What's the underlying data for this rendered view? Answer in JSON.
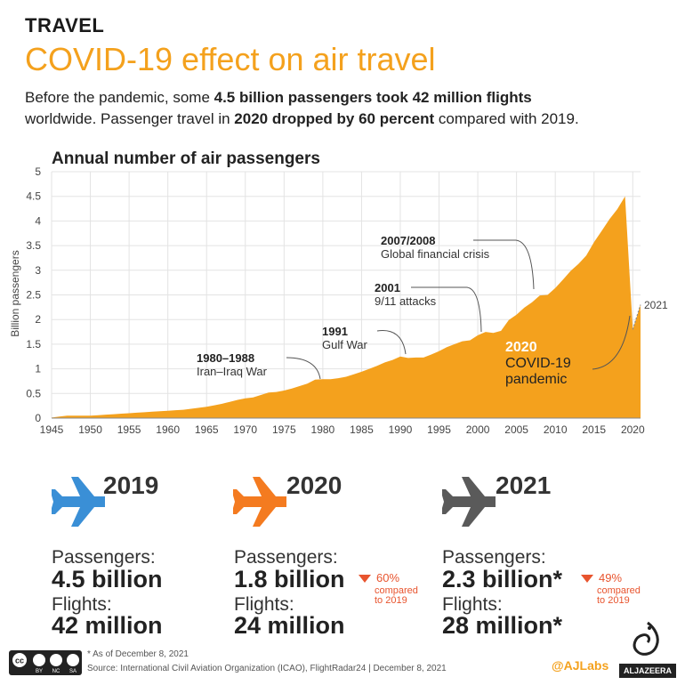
{
  "header": {
    "category": "TRAVEL",
    "headline": "COVID-19 effect on air travel",
    "intro": {
      "l1_a": "Before the pandemic, some ",
      "l1_b": "4.5 billion passengers took 42 million flights",
      "l2_a": "worldwide. Passenger travel in ",
      "l2_b": "2020 dropped by 60 percent",
      "l2_c": " compared with 2019."
    }
  },
  "chart_data": {
    "type": "area",
    "title": "Annual number of air passengers",
    "ylabel": "Billion passengers",
    "xlabel": "",
    "xlim": [
      1945,
      2021
    ],
    "ylim": [
      0,
      5
    ],
    "yticks": [
      "0",
      "0.5",
      "1",
      "1.5",
      "2",
      "2.5",
      "3",
      "3.5",
      "4",
      "4.5",
      "5"
    ],
    "xticks": [
      "1945",
      "1950",
      "1955",
      "1960",
      "1965",
      "1970",
      "1975",
      "1980",
      "1985",
      "1990",
      "1995",
      "2000",
      "2005",
      "2010",
      "2015",
      "2020"
    ],
    "color": "#f4a11d",
    "x": [
      1945,
      1946,
      1947,
      1948,
      1949,
      1950,
      1951,
      1952,
      1953,
      1954,
      1955,
      1956,
      1957,
      1958,
      1959,
      1960,
      1961,
      1962,
      1963,
      1964,
      1965,
      1966,
      1967,
      1968,
      1969,
      1970,
      1971,
      1972,
      1973,
      1974,
      1975,
      1976,
      1977,
      1978,
      1979,
      1980,
      1981,
      1982,
      1983,
      1984,
      1985,
      1986,
      1987,
      1988,
      1989,
      1990,
      1991,
      1992,
      1993,
      1994,
      1995,
      1996,
      1997,
      1998,
      1999,
      2000,
      2001,
      2002,
      2003,
      2004,
      2005,
      2006,
      2007,
      2008,
      2009,
      2010,
      2011,
      2012,
      2013,
      2014,
      2015,
      2016,
      2017,
      2018,
      2019,
      2020,
      2021
    ],
    "values": [
      0.01,
      0.03,
      0.05,
      0.05,
      0.05,
      0.05,
      0.06,
      0.07,
      0.08,
      0.09,
      0.1,
      0.11,
      0.12,
      0.13,
      0.14,
      0.15,
      0.16,
      0.17,
      0.19,
      0.21,
      0.23,
      0.26,
      0.29,
      0.33,
      0.37,
      0.4,
      0.42,
      0.47,
      0.52,
      0.53,
      0.56,
      0.6,
      0.65,
      0.7,
      0.78,
      0.79,
      0.79,
      0.81,
      0.84,
      0.89,
      0.94,
      1.0,
      1.06,
      1.13,
      1.18,
      1.25,
      1.22,
      1.23,
      1.23,
      1.29,
      1.36,
      1.44,
      1.5,
      1.56,
      1.58,
      1.68,
      1.75,
      1.73,
      1.77,
      1.99,
      2.1,
      2.24,
      2.35,
      2.49,
      2.5,
      2.64,
      2.81,
      2.99,
      3.13,
      3.3,
      3.57,
      3.8,
      4.04,
      4.24,
      4.5,
      1.8,
      2.3
    ],
    "dashed_from": 2020,
    "end_label": "2021",
    "annotations": [
      {
        "bold": "1980–1988",
        "text": "Iran–Iraq War"
      },
      {
        "bold": "1991",
        "text": "Gulf War"
      },
      {
        "bold": "2001",
        "text": "9/11 attacks"
      },
      {
        "bold": "2007/2008",
        "text": "Global financial crisis"
      },
      {
        "bold": "2020",
        "text": "COVID-19",
        "text2": "pandemic"
      }
    ]
  },
  "stats": [
    {
      "year": "2019",
      "icon": "airplane-blue-icon",
      "color": "#3a8fd6",
      "passengers_label": "Passengers:",
      "passengers": "4.5 billion",
      "flights_label": "Flights:",
      "flights": "42 million"
    },
    {
      "year": "2020",
      "icon": "airplane-orange-icon",
      "color": "#f47b20",
      "passengers_label": "Passengers:",
      "passengers": "1.8 billion",
      "change": "60%",
      "change_l1": "compared",
      "change_l2": "to 2019",
      "flights_label": "Flights:",
      "flights": "24 million"
    },
    {
      "year": "2021",
      "icon": "airplane-grey-icon",
      "color": "#5a5a5a",
      "passengers_label": "Passengers:",
      "passengers": "2.3 billion*",
      "change": "49%",
      "change_l1": "compared",
      "change_l2": "to 2019",
      "flights_label": "Flights:",
      "flights": "28 million*"
    }
  ],
  "footer": {
    "footnote": "* As of December 8, 2021",
    "source": "Source: International Civil Aviation Organization (ICAO), FlightRadar24 | December 8, 2021",
    "handle": "@AJLabs",
    "brand": "ALJAZEERA",
    "license": [
      "BY",
      "NC",
      "SA"
    ]
  }
}
